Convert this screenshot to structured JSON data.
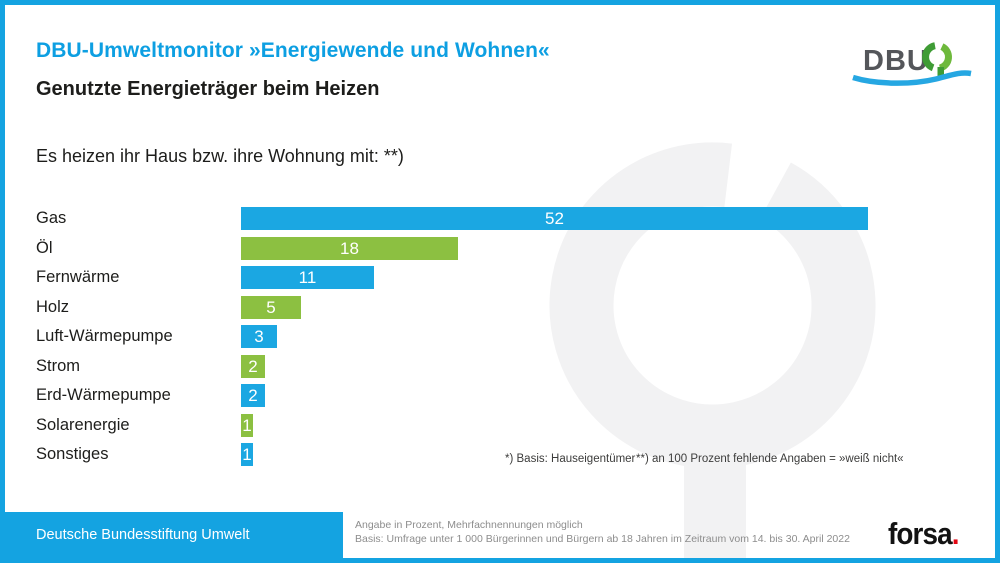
{
  "header": {
    "title": "DBU-Umweltmonitor »Energiewende und Wohnen«",
    "subtitle": "Genutzte Energieträger beim Heizen"
  },
  "question": "Es heizen ihr Haus bzw. ihre Wohnung mit: **)",
  "chart_data": {
    "type": "bar",
    "orientation": "horizontal",
    "unit": "percent",
    "categories": [
      "Gas",
      "Öl",
      "Fernwärme",
      "Holz",
      "Luft-Wärmepumpe",
      "Strom",
      "Erd-Wärmepumpe",
      "Solarenergie",
      "Sonstiges"
    ],
    "values": [
      52,
      18,
      11,
      5,
      3,
      2,
      2,
      1,
      1
    ],
    "bar_colors": [
      "#1ba7e2",
      "#8cc041",
      "#1ba7e2",
      "#8cc041",
      "#1ba7e2",
      "#8cc041",
      "#1ba7e2",
      "#8cc041",
      "#1ba7e2"
    ],
    "value_label_color": "#ffffff",
    "axis_shown": false,
    "xlim": [
      0,
      62
    ],
    "title": "Genutzte Energieträger beim Heizen"
  },
  "footnotes": {
    "basis": "*) Basis: Hauseigentümer",
    "missing": "**) an 100 Prozent fehlende Angaben = »weiß nicht«"
  },
  "footer": {
    "org": "Deutsche Bundesstiftung Umwelt",
    "note_line1": "Angabe in Prozent, Mehrfachnennungen möglich",
    "note_line2": "Basis: Umfrage unter 1 000 Bürgerinnen und Bürgern ab 18 Jahren im Zeitraum vom 14. bis 30. April 2022",
    "agency_name": "forsa",
    "agency_dot": "."
  },
  "logo": {
    "wordmark": "DBU"
  },
  "colors": {
    "brand_blue": "#14a3e1",
    "bar_blue": "#1ba7e2",
    "bar_green": "#8cc041",
    "logo_green_dark": "#3f9c35",
    "logo_green_light": "#6eb93c",
    "forsa_dot_red": "#e30613",
    "watermark_gray": "#f2f2f3",
    "footer_text_gray": "#8d8d8d",
    "text_black": "#1d1d1b"
  }
}
